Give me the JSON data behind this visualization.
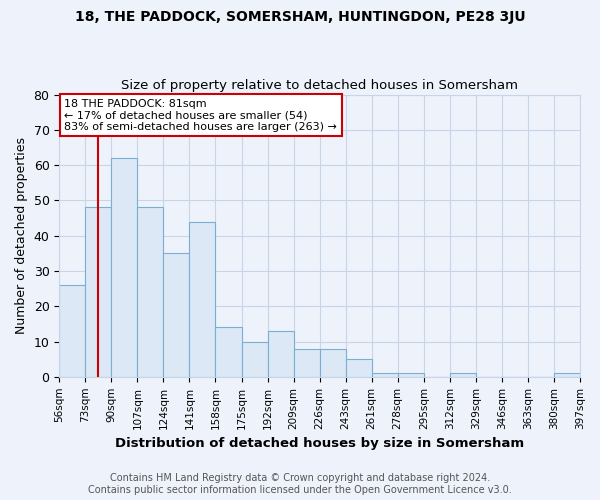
{
  "title": "18, THE PADDOCK, SOMERSHAM, HUNTINGDON, PE28 3JU",
  "subtitle": "Size of property relative to detached houses in Somersham",
  "xlabel": "Distribution of detached houses by size in Somersham",
  "ylabel": "Number of detached properties",
  "footnote1": "Contains HM Land Registry data © Crown copyright and database right 2024.",
  "footnote2": "Contains public sector information licensed under the Open Government Licence v3.0.",
  "bin_labels": [
    "56sqm",
    "73sqm",
    "90sqm",
    "107sqm",
    "124sqm",
    "141sqm",
    "158sqm",
    "175sqm",
    "192sqm",
    "209sqm",
    "226sqm",
    "243sqm",
    "261sqm",
    "278sqm",
    "295sqm",
    "312sqm",
    "329sqm",
    "346sqm",
    "363sqm",
    "380sqm",
    "397sqm"
  ],
  "bar_values": [
    26,
    48,
    62,
    48,
    35,
    44,
    14,
    10,
    13,
    8,
    8,
    5,
    1,
    1,
    0,
    1,
    0,
    0,
    0,
    1
  ],
  "bar_color": "#dce8f5",
  "bar_edge_color": "#7aafd4",
  "bin_edges": [
    56,
    73,
    90,
    107,
    124,
    141,
    158,
    175,
    192,
    209,
    226,
    243,
    261,
    278,
    295,
    312,
    329,
    346,
    363,
    380,
    397
  ],
  "property_sqm": 81,
  "property_label": "18 THE PADDOCK: 81sqm",
  "annotation_line1": "← 17% of detached houses are smaller (54)",
  "annotation_line2": "83% of semi-detached houses are larger (263) →",
  "red_line_color": "#cc0000",
  "ylim": [
    0,
    80
  ],
  "yticks": [
    0,
    10,
    20,
    30,
    40,
    50,
    60,
    70,
    80
  ],
  "grid_color": "#c8d4e8",
  "bg_color": "#eef2fb"
}
